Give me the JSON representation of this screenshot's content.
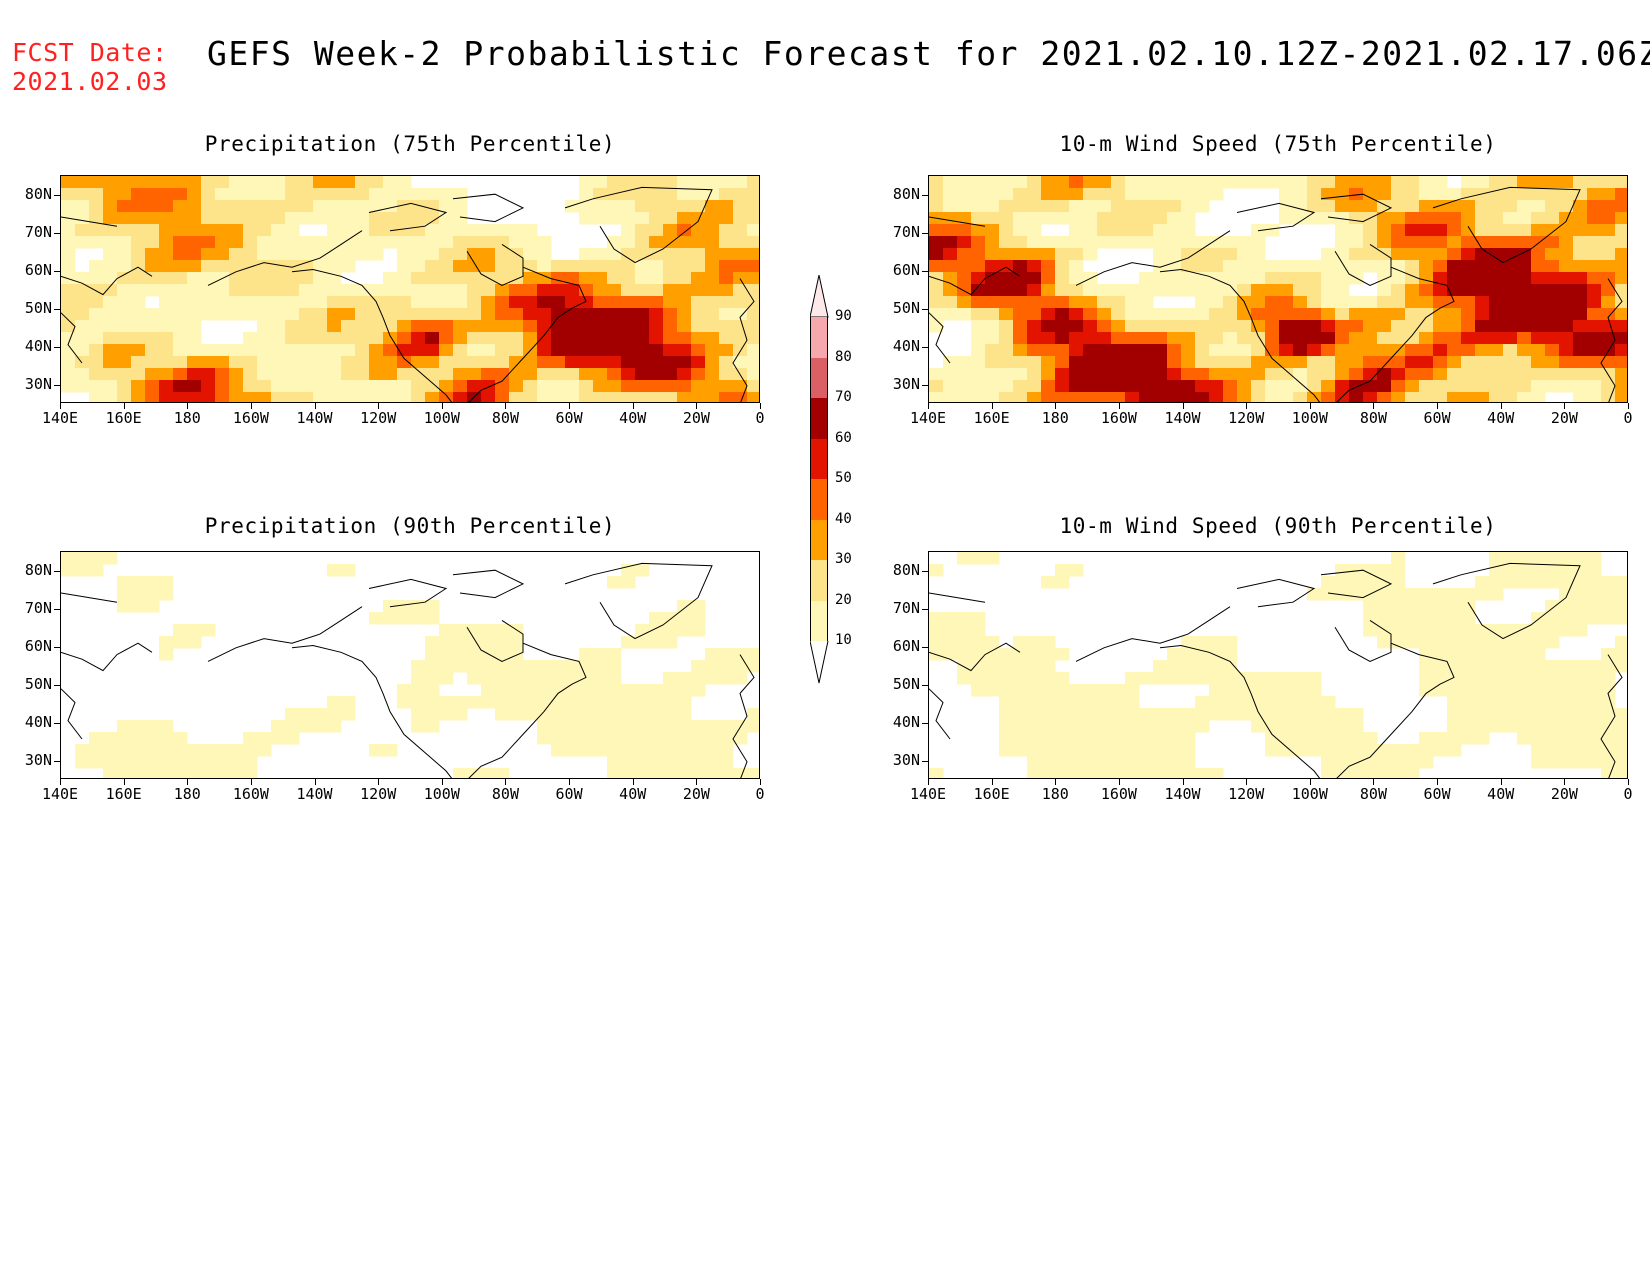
{
  "header": {
    "fcst_line1": "FCST Date:",
    "fcst_line2": "2021.02.03",
    "title": "GEFS Week-2 Probabilistic Forecast for 2021.02.10.12Z-2021.02.17.06Z"
  },
  "panels": [
    {
      "title": "Precipitation (75th Percentile)",
      "name": "precip-75",
      "intensity": 0.75
    },
    {
      "title": "10-m Wind Speed (75th Percentile)",
      "name": "wind-75",
      "intensity": 0.85
    },
    {
      "title": "Precipitation (90th Percentile)",
      "name": "precip-90",
      "intensity": 0.22
    },
    {
      "title": "10-m Wind Speed (90th Percentile)",
      "name": "wind-90",
      "intensity": 0.25
    }
  ],
  "axes": {
    "lat_labels": [
      "80N",
      "70N",
      "60N",
      "50N",
      "40N",
      "30N"
    ],
    "lon_labels": [
      "140E",
      "160E",
      "180",
      "160W",
      "140W",
      "120W",
      "100W",
      "80W",
      "60W",
      "40W",
      "20W",
      "0"
    ]
  },
  "colorbar": {
    "labels": [
      "90",
      "80",
      "70",
      "60",
      "50",
      "40",
      "30",
      "20",
      "10"
    ],
    "colors": [
      "#f6a8ad",
      "#da6065",
      "#a20000",
      "#e21400",
      "#ff6400",
      "#ffa000",
      "#fde48a",
      "#fff7b8"
    ]
  }
}
